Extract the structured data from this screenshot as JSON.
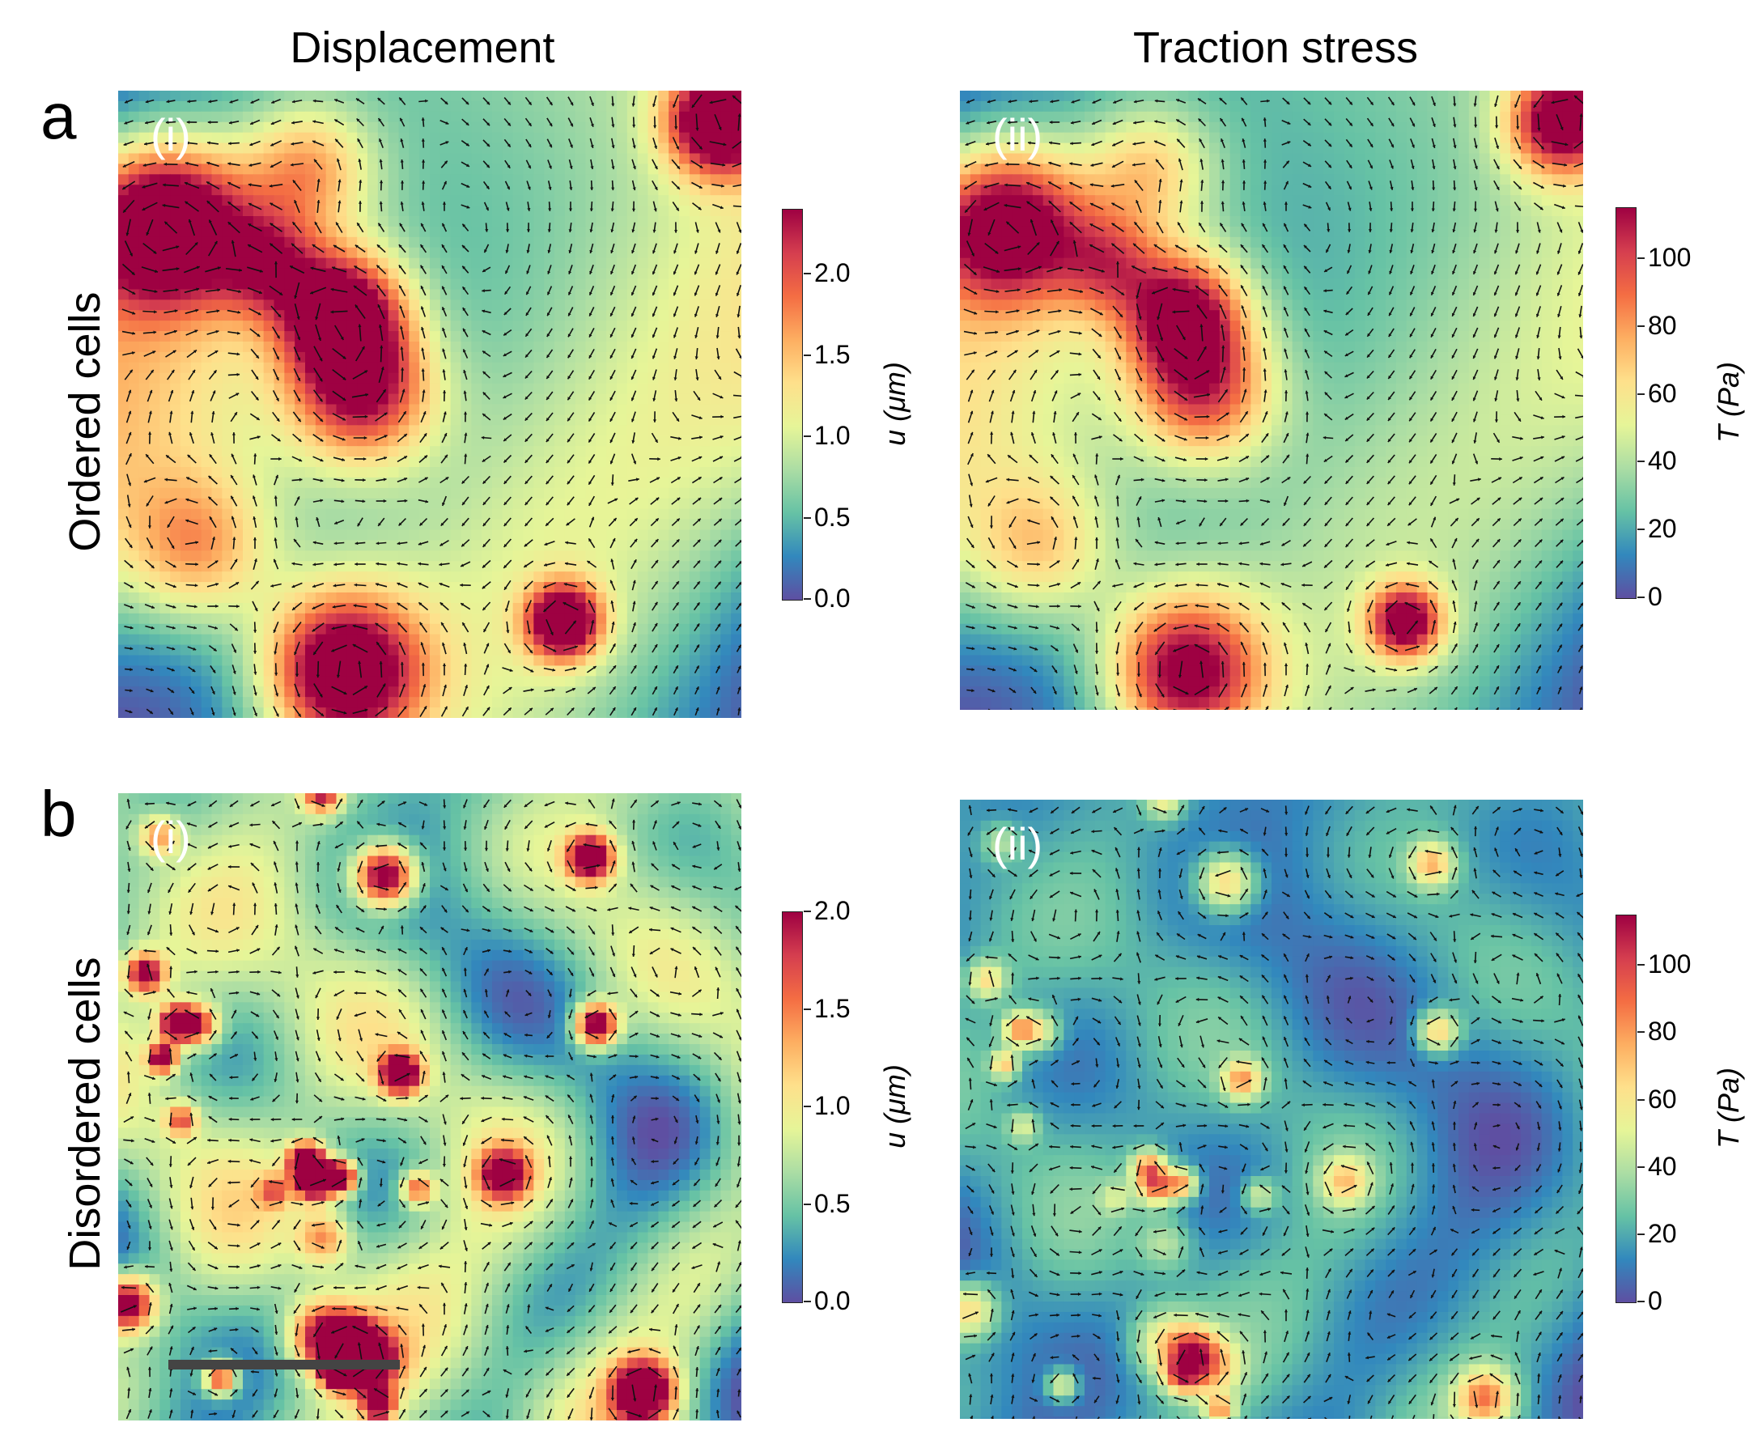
{
  "figure": {
    "col_titles": [
      "Displacement",
      "Traction stress"
    ],
    "row_labels": [
      "Ordered cells",
      "Disordered cells"
    ],
    "panel_letters": [
      "a",
      "b"
    ],
    "sublabels": [
      "(i)",
      "(ii)"
    ]
  },
  "colorbars": {
    "a_disp": {
      "label": "u (μm)",
      "ticks": [
        "0.0",
        "0.5",
        "1.0",
        "1.5",
        "2.0"
      ],
      "min": 0,
      "max": 2.4
    },
    "a_trac": {
      "label": "T (Pa)",
      "ticks": [
        "0",
        "20",
        "40",
        "60",
        "80",
        "100"
      ],
      "min": 0,
      "max": 115
    },
    "b_disp": {
      "label": "u (μm)",
      "ticks": [
        "0.0",
        "0.5",
        "1.0",
        "1.5",
        "2.0"
      ],
      "min": 0,
      "max": 2.0
    },
    "b_trac": {
      "label": "T (Pa)",
      "ticks": [
        "0",
        "20",
        "40",
        "60",
        "80",
        "100"
      ],
      "min": 0,
      "max": 115
    }
  },
  "colors": {
    "colormap": [
      "#5e4fa2",
      "#3288bd",
      "#66c2a5",
      "#abdda4",
      "#e6f598",
      "#fee08b",
      "#fdae61",
      "#f46d43",
      "#d53e4f",
      "#9e0142"
    ],
    "arrow": "#111111",
    "scalebar": "#444444"
  }
}
